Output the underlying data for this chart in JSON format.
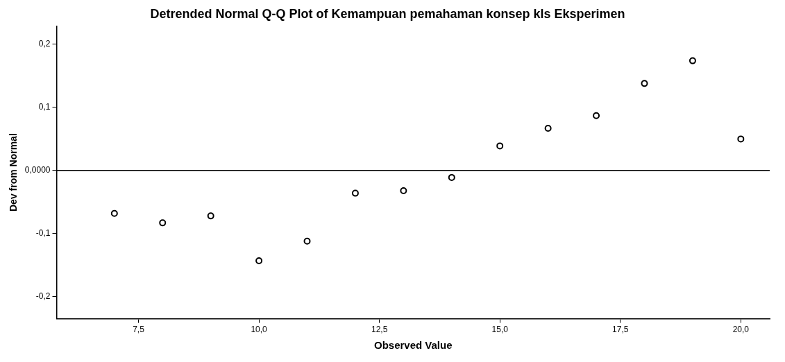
{
  "chart_data": {
    "type": "scatter",
    "title": "Detrended Normal Q-Q Plot of Kemampuan pemahaman konsep kls Eksperimen",
    "xlabel": "Observed Value",
    "ylabel": "Dev from Normal",
    "x": [
      7,
      8,
      9,
      10,
      11,
      12,
      13,
      14,
      15,
      16,
      17,
      18,
      19,
      20
    ],
    "series": [
      {
        "color": "#000000",
        "values": [
          -0.068,
          -0.083,
          -0.072,
          -0.143,
          -0.112,
          -0.036,
          -0.032,
          -0.011,
          0.039,
          0.067,
          0.087,
          0.138,
          0.174,
          0.05
        ]
      }
    ],
    "xlim": [
      5.8,
      20.6
    ],
    "ylim": [
      -0.235,
      0.229
    ],
    "xticks": [
      {
        "value": 7.5,
        "label": "7,5"
      },
      {
        "value": 10,
        "label": "10,0"
      },
      {
        "value": 12.5,
        "label": "12,5"
      },
      {
        "value": 15,
        "label": "15,0"
      },
      {
        "value": 17.5,
        "label": "17,5"
      },
      {
        "value": 20,
        "label": "20,0"
      }
    ],
    "yticks": [
      {
        "value": -0.2,
        "label": "-0,2"
      },
      {
        "value": -0.1,
        "label": "-0,1"
      },
      {
        "value": 0,
        "label": "0,0000"
      },
      {
        "value": 0.1,
        "label": "0,1"
      },
      {
        "value": 0.2,
        "label": "0,2"
      }
    ],
    "ref_lines": [
      {
        "axis": "y",
        "value": 0,
        "color": "#000000"
      }
    ],
    "marker": "circle",
    "grid": false,
    "legend": false
  }
}
